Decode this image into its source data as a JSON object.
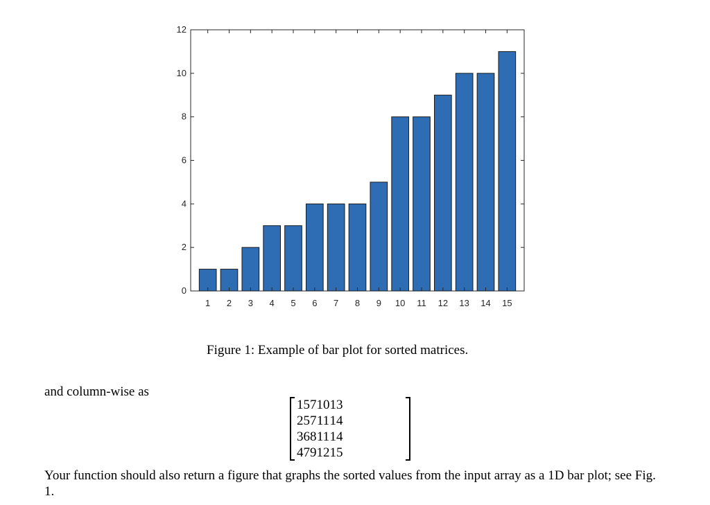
{
  "chart_data": {
    "type": "bar",
    "categories": [
      "1",
      "2",
      "3",
      "4",
      "5",
      "6",
      "7",
      "8",
      "9",
      "10",
      "11",
      "12",
      "13",
      "14",
      "15"
    ],
    "values": [
      1,
      1,
      2,
      3,
      3,
      4,
      4,
      4,
      5,
      8,
      8,
      9,
      10,
      10,
      11
    ],
    "ylim": [
      0,
      12
    ],
    "yticks": [
      "0",
      "2",
      "4",
      "6",
      "8",
      "10",
      "12"
    ],
    "bar_color": "#2e6db4",
    "bar_edge_color": "#1a1a1a",
    "axis_color": "#262626"
  },
  "caption": "Figure 1: Example of bar plot for sorted matrices.",
  "paragraph_intro": "and column-wise as",
  "matrix": [
    [
      "1",
      "5",
      "7",
      "10",
      "13"
    ],
    [
      "2",
      "5",
      "7",
      "11",
      "14"
    ],
    [
      "3",
      "6",
      "8",
      "11",
      "14"
    ],
    [
      "4",
      "7",
      "9",
      "12",
      "15"
    ]
  ],
  "paragraph_body": "Your function should also return a figure that graphs the sorted values from the input array as a 1D bar plot; see Fig. 1."
}
